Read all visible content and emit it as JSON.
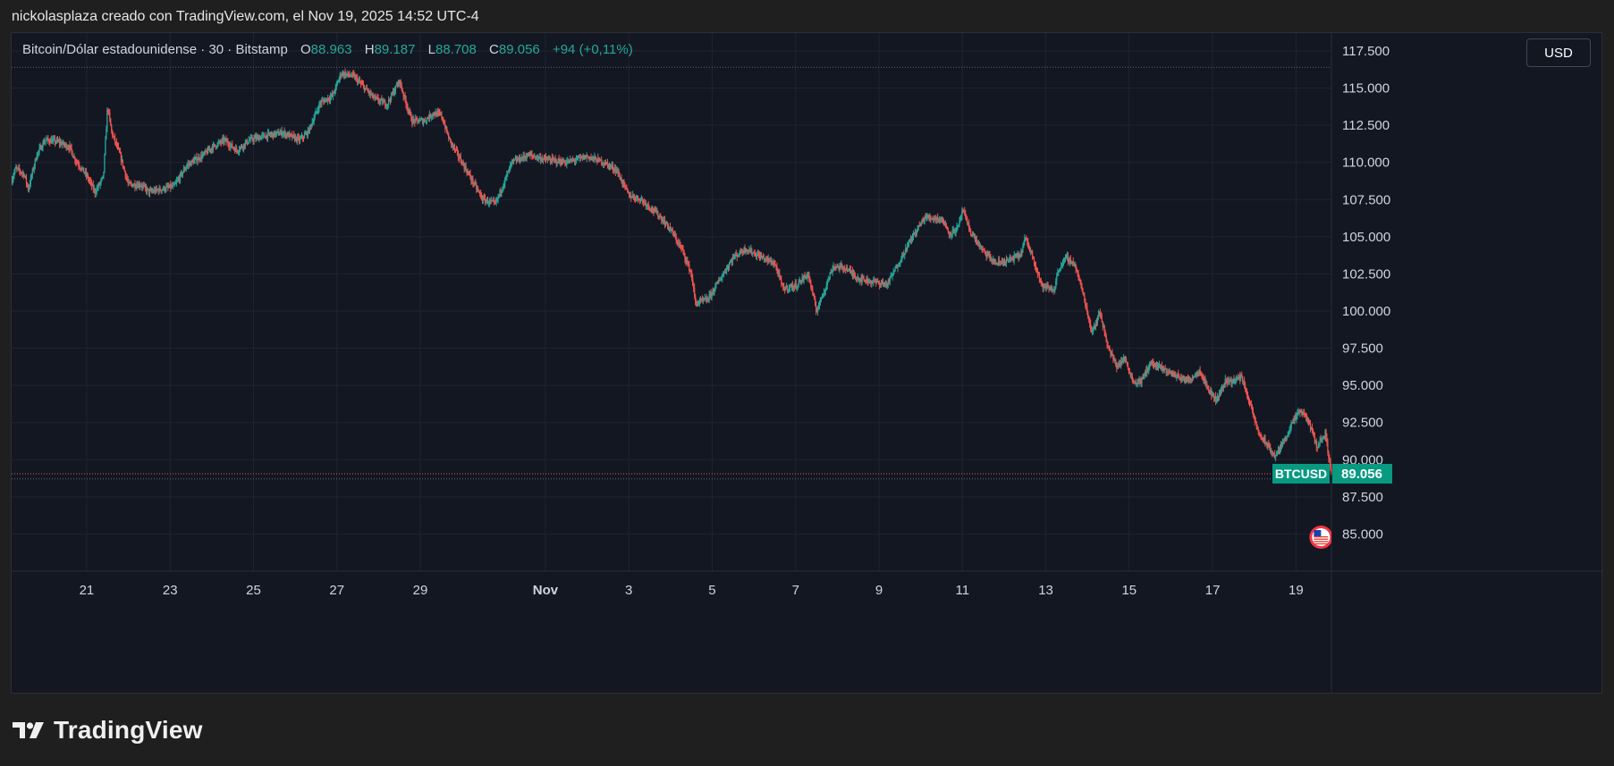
{
  "credit": "nickolasplaza creado con TradingView.com, el Nov 19, 2025 14:52 UTC-4",
  "legend": {
    "symbol": "Bitcoin/Dólar estadounidense · 30 · Bitstamp",
    "o_label": "O",
    "o_value": "88.963",
    "h_label": "H",
    "h_value": "89.187",
    "l_label": "L",
    "l_value": "88.708",
    "c_label": "C",
    "c_value": "89.056",
    "change": "+94 (+0,11%)"
  },
  "currency_button": "USD",
  "brand": {
    "name": "TradingView",
    "icon": "tradingview-logo-icon"
  },
  "colors": {
    "up": "#26a69a",
    "down": "#ef5350",
    "background": "#131722",
    "grid": "#1f2430",
    "price_tag": "#089981"
  },
  "chart_data": {
    "type": "candlestick",
    "symbol": "BTCUSD",
    "interval": "30",
    "ylim": [
      82500,
      118700
    ],
    "y_ticks": [
      85000,
      87500,
      90000,
      92500,
      95000,
      97500,
      100000,
      102500,
      105000,
      107500,
      110000,
      112500,
      115000,
      117500
    ],
    "y_tick_labels": [
      "85.000",
      "87.500",
      "90.000",
      "92.500",
      "95.000",
      "97.500",
      "100.000",
      "102.500",
      "105.000",
      "107.500",
      "110.000",
      "112.500",
      "115.000",
      "117.500"
    ],
    "x_range_days": [
      19.2,
      50.85
    ],
    "x_ticks": [
      {
        "day": 21,
        "label": "21"
      },
      {
        "day": 23,
        "label": "23"
      },
      {
        "day": 25,
        "label": "25"
      },
      {
        "day": 27,
        "label": "27"
      },
      {
        "day": 29,
        "label": "29"
      },
      {
        "day": 32,
        "label": "Nov"
      },
      {
        "day": 34,
        "label": "3"
      },
      {
        "day": 36,
        "label": "5"
      },
      {
        "day": 38,
        "label": "7"
      },
      {
        "day": 40,
        "label": "9"
      },
      {
        "day": 42,
        "label": "11"
      },
      {
        "day": 44,
        "label": "13"
      },
      {
        "day": 46,
        "label": "15"
      },
      {
        "day": 48,
        "label": "17"
      },
      {
        "day": 50,
        "label": "19"
      }
    ],
    "price_path": [
      [
        19.2,
        108800
      ],
      [
        19.3,
        109600
      ],
      [
        19.5,
        109200
      ],
      [
        19.6,
        108200
      ],
      [
        19.8,
        110500
      ],
      [
        20.0,
        111500
      ],
      [
        20.3,
        111400
      ],
      [
        20.6,
        111000
      ],
      [
        20.7,
        110300
      ],
      [
        21.0,
        109100
      ],
      [
        21.2,
        108000
      ],
      [
        21.4,
        109000
      ],
      [
        21.5,
        113800
      ],
      [
        21.6,
        112000
      ],
      [
        21.8,
        110500
      ],
      [
        22.0,
        108500
      ],
      [
        22.3,
        108500
      ],
      [
        22.5,
        108000
      ],
      [
        22.8,
        108200
      ],
      [
        23.1,
        108400
      ],
      [
        23.4,
        109800
      ],
      [
        23.8,
        110500
      ],
      [
        24.0,
        111000
      ],
      [
        24.3,
        111500
      ],
      [
        24.6,
        110800
      ],
      [
        24.9,
        111500
      ],
      [
        25.3,
        111800
      ],
      [
        25.7,
        112000
      ],
      [
        26.1,
        111500
      ],
      [
        26.3,
        112000
      ],
      [
        26.6,
        114000
      ],
      [
        26.9,
        114500
      ],
      [
        27.1,
        116000
      ],
      [
        27.4,
        115800
      ],
      [
        27.6,
        115200
      ],
      [
        27.9,
        114300
      ],
      [
        28.2,
        113900
      ],
      [
        28.5,
        115500
      ],
      [
        28.6,
        114500
      ],
      [
        28.8,
        112800
      ],
      [
        29.1,
        112800
      ],
      [
        29.3,
        113300
      ],
      [
        29.5,
        113200
      ],
      [
        29.7,
        111500
      ],
      [
        30.0,
        110000
      ],
      [
        30.2,
        109000
      ],
      [
        30.5,
        107500
      ],
      [
        30.8,
        107200
      ],
      [
        31.2,
        110000
      ],
      [
        31.6,
        110500
      ],
      [
        32.0,
        110200
      ],
      [
        32.5,
        110000
      ],
      [
        33.0,
        110400
      ],
      [
        33.4,
        110000
      ],
      [
        33.7,
        109500
      ],
      [
        34.0,
        107800
      ],
      [
        34.3,
        107500
      ],
      [
        34.7,
        106500
      ],
      [
        35.0,
        105500
      ],
      [
        35.3,
        104000
      ],
      [
        35.5,
        102500
      ],
      [
        35.6,
        100500
      ],
      [
        35.9,
        100800
      ],
      [
        36.2,
        102200
      ],
      [
        36.5,
        103600
      ],
      [
        36.8,
        104200
      ],
      [
        37.2,
        103600
      ],
      [
        37.5,
        103200
      ],
      [
        37.7,
        101500
      ],
      [
        38.0,
        101700
      ],
      [
        38.3,
        102500
      ],
      [
        38.5,
        100000
      ],
      [
        38.7,
        101500
      ],
      [
        38.9,
        103000
      ],
      [
        39.2,
        102900
      ],
      [
        39.5,
        102200
      ],
      [
        39.8,
        102000
      ],
      [
        40.2,
        101800
      ],
      [
        40.5,
        103400
      ],
      [
        40.8,
        105000
      ],
      [
        41.1,
        106300
      ],
      [
        41.5,
        106200
      ],
      [
        41.7,
        105200
      ],
      [
        41.9,
        105600
      ],
      [
        42.0,
        106800
      ],
      [
        42.2,
        105300
      ],
      [
        42.5,
        104000
      ],
      [
        42.8,
        103200
      ],
      [
        43.1,
        103400
      ],
      [
        43.4,
        103800
      ],
      [
        43.5,
        104900
      ],
      [
        43.7,
        103600
      ],
      [
        43.9,
        101700
      ],
      [
        44.2,
        101400
      ],
      [
        44.3,
        102800
      ],
      [
        44.5,
        103600
      ],
      [
        44.7,
        103100
      ],
      [
        44.9,
        101100
      ],
      [
        45.1,
        98600
      ],
      [
        45.3,
        99900
      ],
      [
        45.5,
        97500
      ],
      [
        45.7,
        96300
      ],
      [
        45.9,
        96800
      ],
      [
        46.1,
        95200
      ],
      [
        46.3,
        95300
      ],
      [
        46.5,
        96500
      ],
      [
        46.8,
        96100
      ],
      [
        47.1,
        95700
      ],
      [
        47.4,
        95300
      ],
      [
        47.7,
        96000
      ],
      [
        47.9,
        94700
      ],
      [
        48.1,
        94000
      ],
      [
        48.3,
        95300
      ],
      [
        48.5,
        95300
      ],
      [
        48.7,
        95600
      ],
      [
        48.9,
        93700
      ],
      [
        49.1,
        91800
      ],
      [
        49.3,
        91000
      ],
      [
        49.5,
        90200
      ],
      [
        49.7,
        91200
      ],
      [
        49.9,
        92400
      ],
      [
        50.1,
        93300
      ],
      [
        50.3,
        92600
      ],
      [
        50.5,
        90900
      ],
      [
        50.7,
        91800
      ],
      [
        50.85,
        89056
      ]
    ],
    "last_price": 89056,
    "last_price_label": "89.056",
    "last_price_tag": "BTCUSD",
    "high_line": 116400,
    "current_low_line": 88708,
    "events": [
      {
        "day": 50.6,
        "icon": "us-flag-icon"
      },
      {
        "day": 51.3,
        "icon": "us-flag-icon"
      }
    ]
  }
}
